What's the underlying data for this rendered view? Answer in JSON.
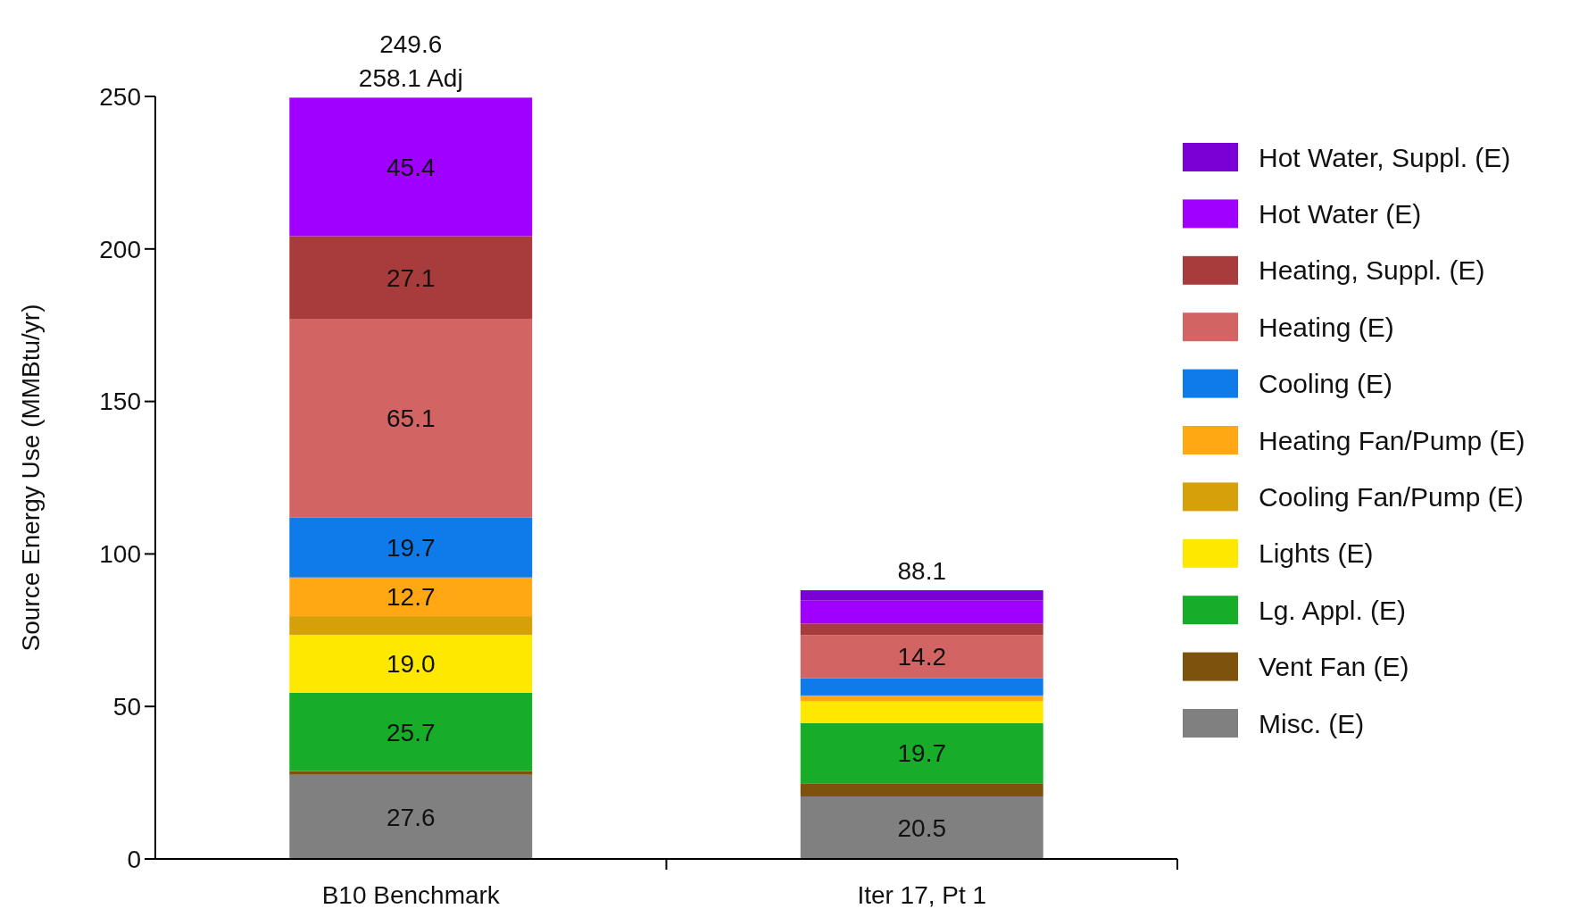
{
  "chart_data": {
    "type": "bar",
    "stacked": true,
    "categories": [
      "B10 Benchmark",
      "Iter 17, Pt 1"
    ],
    "ylabel": "Source Energy Use (MMBtu/yr)",
    "ylim": [
      0,
      250
    ],
    "yticks": [
      0,
      50,
      100,
      150,
      200,
      250
    ],
    "legend": "right",
    "grid": false,
    "totals": [
      "249.6\n258.1 Adj",
      "88.1"
    ],
    "series": [
      {
        "name": "Misc. (E)",
        "color": "#808080",
        "values": [
          27.6,
          20.5
        ],
        "value_labels": [
          "27.6",
          "20.5"
        ]
      },
      {
        "name": "Vent Fan (E)",
        "color": "#7d520c",
        "values": [
          1.2,
          4.3
        ],
        "value_labels": [
          null,
          null
        ]
      },
      {
        "name": "Lg. Appl. (E)",
        "color": "#18ad28",
        "values": [
          25.7,
          19.7
        ],
        "value_labels": [
          "25.7",
          "19.7"
        ]
      },
      {
        "name": "Lights (E)",
        "color": "#ffe800",
        "values": [
          19.0,
          7.2
        ],
        "value_labels": [
          "19.0",
          null
        ]
      },
      {
        "name": "Cooling Fan/Pump (E)",
        "color": "#d6a00a",
        "values": [
          6.1,
          0
        ],
        "value_labels": [
          null,
          null
        ]
      },
      {
        "name": "Heating Fan/Pump (E)",
        "color": "#ffa814",
        "values": [
          12.7,
          1.9
        ],
        "value_labels": [
          "12.7",
          null
        ]
      },
      {
        "name": "Cooling (E)",
        "color": "#0f7beb",
        "values": [
          19.7,
          5.6
        ],
        "value_labels": [
          "19.7",
          null
        ]
      },
      {
        "name": "Heating (E)",
        "color": "#d26464",
        "values": [
          65.1,
          14.2
        ],
        "value_labels": [
          "65.1",
          "14.2"
        ]
      },
      {
        "name": "Heating, Suppl. (E)",
        "color": "#a83c3c",
        "values": [
          27.1,
          3.8
        ],
        "value_labels": [
          "27.1",
          null
        ]
      },
      {
        "name": "Hot Water (E)",
        "color": "#a000ff",
        "values": [
          45.4,
          7.5
        ],
        "value_labels": [
          "45.4",
          null
        ]
      },
      {
        "name": "Hot Water, Suppl. (E)",
        "color": "#7b00d6",
        "values": [
          0,
          3.4
        ],
        "value_labels": [
          null,
          null
        ]
      }
    ]
  }
}
